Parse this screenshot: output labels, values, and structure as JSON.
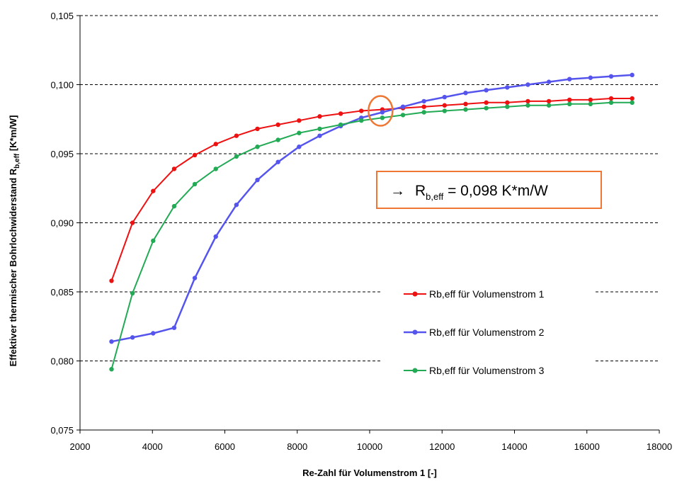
{
  "chart_data": {
    "type": "line",
    "xlabel": "Re-Zahl für Volumenstrom 1 [-]",
    "ylabel": {
      "main": "Effektiver thermischer Bohrlochwiderstand R",
      "sub": "b,eff",
      "unit": " [K*m/W]"
    },
    "xlim": [
      2000,
      18000
    ],
    "ylim": [
      0.075,
      0.105
    ],
    "x_ticks": [
      2000,
      4000,
      6000,
      8000,
      10000,
      12000,
      14000,
      16000,
      18000
    ],
    "x_tick_labels": [
      "2000",
      "4000",
      "6000",
      "8000",
      "10000",
      "12000",
      "14000",
      "16000",
      "18000"
    ],
    "y_ticks": [
      0.075,
      0.08,
      0.085,
      0.09,
      0.095,
      0.1,
      0.105
    ],
    "y_tick_labels": [
      "0,075",
      "0,080",
      "0,085",
      "0,090",
      "0,095",
      "0,100",
      "0,105"
    ],
    "grid": "horizontal dashed",
    "legend_position": "center-right",
    "series": [
      {
        "name": "Rb,eff für Volumenstrom 1",
        "color": "#ee1111",
        "x": [
          2870,
          3450,
          4020,
          4600,
          5170,
          5750,
          6320,
          6900,
          7470,
          8050,
          8620,
          9200,
          9770,
          10350,
          10920,
          11500,
          12070,
          12650,
          13220,
          13800,
          14370,
          14950,
          15520,
          16100,
          16670,
          17250
        ],
        "y": [
          0.0858,
          0.09,
          0.0923,
          0.0939,
          0.0949,
          0.0957,
          0.0963,
          0.0968,
          0.0971,
          0.0974,
          0.0977,
          0.0979,
          0.0981,
          0.0982,
          0.0983,
          0.0984,
          0.0985,
          0.0986,
          0.0987,
          0.0987,
          0.0988,
          0.0988,
          0.0989,
          0.0989,
          0.099,
          0.099
        ]
      },
      {
        "name": "Rb,eff für Volumenstrom 2",
        "color": "#5555ee",
        "x": [
          2870,
          3450,
          4020,
          4600,
          5170,
          5750,
          6320,
          6900,
          7470,
          8050,
          8620,
          9200,
          9770,
          10350,
          10920,
          11500,
          12070,
          12650,
          13220,
          13800,
          14370,
          14950,
          15520,
          16100,
          16670,
          17250
        ],
        "y": [
          0.0814,
          0.0817,
          0.082,
          0.0824,
          0.086,
          0.089,
          0.0913,
          0.0931,
          0.0944,
          0.0955,
          0.0963,
          0.097,
          0.0976,
          0.098,
          0.0984,
          0.0988,
          0.0991,
          0.0994,
          0.0996,
          0.0998,
          0.1,
          0.1002,
          0.1004,
          0.1005,
          0.1006,
          0.1007
        ]
      },
      {
        "name": "Rb,eff für Volumenstrom 3",
        "color": "#22aa55",
        "x": [
          2870,
          3450,
          4020,
          4600,
          5170,
          5750,
          6320,
          6900,
          7470,
          8050,
          8620,
          9200,
          9770,
          10350,
          10920,
          11500,
          12070,
          12650,
          13220,
          13800,
          14370,
          14950,
          15520,
          16100,
          16670,
          17250
        ],
        "y": [
          0.0794,
          0.0849,
          0.0887,
          0.0912,
          0.0928,
          0.0939,
          0.0948,
          0.0955,
          0.096,
          0.0965,
          0.0968,
          0.0971,
          0.0974,
          0.0976,
          0.0978,
          0.098,
          0.0981,
          0.0982,
          0.0983,
          0.0984,
          0.0985,
          0.0985,
          0.0986,
          0.0986,
          0.0987,
          0.0987
        ]
      }
    ],
    "annotation": {
      "arrow": "→",
      "symbol": "R",
      "subscript": "b,eff",
      "value_text": " = 0,098 K*m/W",
      "border_color": "#ee7733",
      "marker": "orange ellipse at series intersection",
      "marker_x": 10300,
      "marker_y": 0.0981
    }
  }
}
